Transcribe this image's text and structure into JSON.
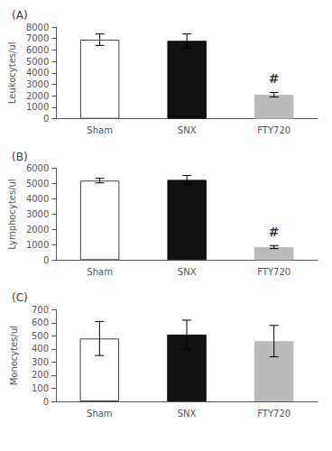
{
  "chart_data": [
    {
      "type": "bar",
      "title": "(A)",
      "ylabel": "Leukocytes/ul",
      "categories": [
        "Sham",
        "SNX",
        "FTY720"
      ],
      "values": [
        6900,
        6800,
        2100
      ],
      "errors": [
        500,
        600,
        200
      ],
      "colors": [
        "white",
        "#111111",
        "#bbbbbb"
      ],
      "ylim": [
        0,
        8000
      ],
      "yticks": [
        0,
        1000,
        2000,
        3000,
        4000,
        5000,
        6000,
        7000,
        8000
      ],
      "grid": false,
      "annotations": [
        {
          "text": "#",
          "x": "FTY720"
        }
      ]
    },
    {
      "type": "bar",
      "title": "(B)",
      "ylabel": "Lymphocytes/ul",
      "categories": [
        "Sham",
        "SNX",
        "FTY720"
      ],
      "values": [
        5200,
        5250,
        850
      ],
      "errors": [
        150,
        280,
        100
      ],
      "colors": [
        "white",
        "#111111",
        "#bbbbbb"
      ],
      "ylim": [
        0,
        6000
      ],
      "yticks": [
        0,
        1000,
        2000,
        3000,
        4000,
        5000,
        6000
      ],
      "grid": false,
      "annotations": [
        {
          "text": "#",
          "x": "FTY720"
        }
      ]
    },
    {
      "type": "bar",
      "title": "(C)",
      "ylabel": "Monocytes/ul",
      "categories": [
        "Sham",
        "SNX",
        "FTY720"
      ],
      "values": [
        480,
        510,
        460
      ],
      "errors": [
        130,
        110,
        120
      ],
      "colors": [
        "white",
        "#111111",
        "#bbbbbb"
      ],
      "ylim": [
        0,
        700
      ],
      "yticks": [
        0,
        100,
        200,
        300,
        400,
        500,
        600,
        700
      ],
      "grid": false
    }
  ]
}
